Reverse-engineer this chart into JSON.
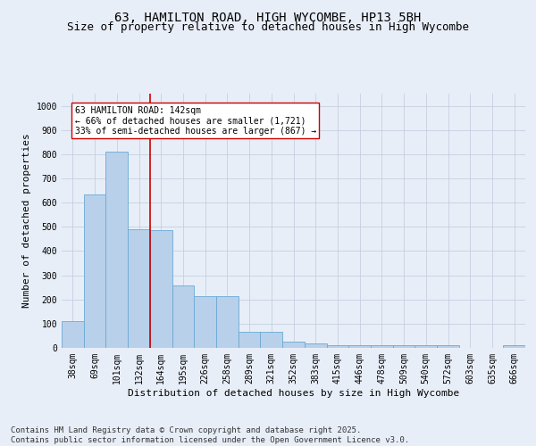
{
  "title1": "63, HAMILTON ROAD, HIGH WYCOMBE, HP13 5BH",
  "title2": "Size of property relative to detached houses in High Wycombe",
  "xlabel": "Distribution of detached houses by size in High Wycombe",
  "ylabel": "Number of detached properties",
  "categories": [
    "38sqm",
    "69sqm",
    "101sqm",
    "132sqm",
    "164sqm",
    "195sqm",
    "226sqm",
    "258sqm",
    "289sqm",
    "321sqm",
    "352sqm",
    "383sqm",
    "415sqm",
    "446sqm",
    "478sqm",
    "509sqm",
    "540sqm",
    "572sqm",
    "603sqm",
    "635sqm",
    "666sqm"
  ],
  "values": [
    110,
    635,
    810,
    490,
    485,
    257,
    213,
    213,
    65,
    65,
    25,
    17,
    12,
    12,
    10,
    10,
    10,
    10,
    0,
    0,
    10
  ],
  "bar_color": "#b8d0ea",
  "bar_edge_color": "#6aaad4",
  "vline_x": 3.5,
  "vline_color": "#cc0000",
  "annotation_text": "63 HAMILTON ROAD: 142sqm\n← 66% of detached houses are smaller (1,721)\n33% of semi-detached houses are larger (867) →",
  "annotation_box_color": "#ffffff",
  "annotation_box_edge": "#cc0000",
  "ylim": [
    0,
    1050
  ],
  "yticks": [
    0,
    100,
    200,
    300,
    400,
    500,
    600,
    700,
    800,
    900,
    1000
  ],
  "footer": "Contains HM Land Registry data © Crown copyright and database right 2025.\nContains public sector information licensed under the Open Government Licence v3.0.",
  "bg_color": "#e8eef8",
  "plot_bg_color": "#e8eef8",
  "grid_color": "#c5cfe0",
  "title_fontsize": 10,
  "subtitle_fontsize": 9,
  "axis_label_fontsize": 8,
  "tick_fontsize": 7,
  "footer_fontsize": 6.5,
  "annotation_fontsize": 7
}
